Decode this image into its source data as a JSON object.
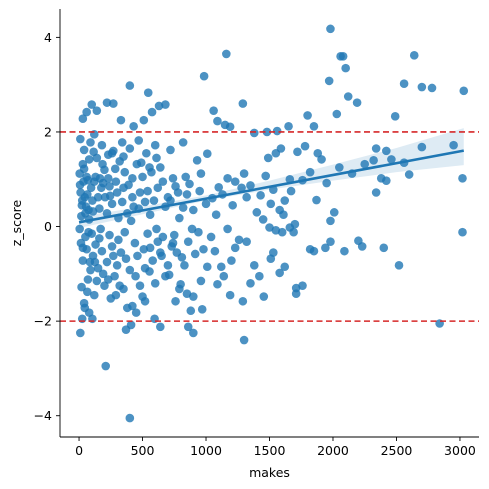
{
  "chart_data": {
    "type": "scatter",
    "xlabel": "makes",
    "ylabel": "z_score",
    "xlim": [
      -150,
      3150
    ],
    "ylim": [
      -4.45,
      4.6
    ],
    "x_ticks": [
      0,
      500,
      1000,
      1500,
      2000,
      2500,
      3000
    ],
    "y_ticks": [
      -4,
      -2,
      0,
      2,
      4
    ],
    "grid": false,
    "legend": "none",
    "point_color": "#1f77b4",
    "reference_lines": [
      {
        "y": 2,
        "color": "#d62728",
        "style": "dashed"
      },
      {
        "y": -2,
        "color": "#d62728",
        "style": "dashed"
      }
    ],
    "regression": {
      "x_range": [
        0,
        3030
      ],
      "intercept": 0.09,
      "slope": 0.0005,
      "ci_band": [
        {
          "x": 0,
          "low": -0.03,
          "high": 0.21
        },
        {
          "x": 500,
          "low": 0.26,
          "high": 0.42
        },
        {
          "x": 1000,
          "low": 0.55,
          "high": 0.66
        },
        {
          "x": 1500,
          "low": 0.78,
          "high": 0.97
        },
        {
          "x": 2000,
          "low": 0.97,
          "high": 1.31
        },
        {
          "x": 2500,
          "low": 1.15,
          "high": 1.66
        },
        {
          "x": 3030,
          "low": 1.3,
          "high": 2.08
        }
      ]
    },
    "points": [
      [
        1980,
        4.18
      ],
      [
        2060,
        3.6
      ],
      [
        2080,
        3.6
      ],
      [
        2640,
        3.62
      ],
      [
        1160,
        3.65
      ],
      [
        400,
        2.98
      ],
      [
        545,
        2.83
      ],
      [
        985,
        3.18
      ],
      [
        2100,
        3.35
      ],
      [
        1970,
        3.08
      ],
      [
        2560,
        3.02
      ],
      [
        2700,
        2.95
      ],
      [
        2780,
        2.93
      ],
      [
        3030,
        2.87
      ],
      [
        2190,
        2.62
      ],
      [
        2120,
        2.75
      ],
      [
        1060,
        2.45
      ],
      [
        1290,
        2.6
      ],
      [
        1480,
        2.0
      ],
      [
        1090,
        2.23
      ],
      [
        1150,
        2.15
      ],
      [
        1190,
        2.11
      ],
      [
        1380,
        1.98
      ],
      [
        1560,
        2.02
      ],
      [
        1650,
        2.12
      ],
      [
        1800,
        2.35
      ],
      [
        1850,
        2.12
      ],
      [
        2030,
        2.38
      ],
      [
        2490,
        2.33
      ],
      [
        2340,
        1.65
      ],
      [
        2320,
        1.4
      ],
      [
        2420,
        1.6
      ],
      [
        2560,
        1.35
      ],
      [
        2700,
        1.68
      ],
      [
        2420,
        0.97
      ],
      [
        2380,
        1.02
      ],
      [
        2340,
        0.72
      ],
      [
        2010,
        0.3
      ],
      [
        1980,
        0.12
      ],
      [
        1870,
        0.56
      ],
      [
        1720,
        1.58
      ],
      [
        1910,
        1.42
      ],
      [
        1780,
        1.7
      ],
      [
        1550,
        1.55
      ],
      [
        1490,
        1.45
      ],
      [
        1470,
        1.07
      ],
      [
        1590,
        1.65
      ],
      [
        1660,
        1.0
      ],
      [
        1670,
        0.75
      ],
      [
        1620,
        0.55
      ],
      [
        1580,
        0.35
      ],
      [
        1510,
        0.48
      ],
      [
        1430,
        0.66
      ],
      [
        1350,
        0.87
      ],
      [
        1300,
        1.12
      ],
      [
        1230,
        0.95
      ],
      [
        1170,
        1.02
      ],
      [
        1100,
        0.83
      ],
      [
        1050,
        0.6
      ],
      [
        1010,
        1.54
      ],
      [
        960,
        1.12
      ],
      [
        930,
        1.4
      ],
      [
        870,
        0.9
      ],
      [
        850,
        0.68
      ],
      [
        820,
        0.4
      ],
      [
        790,
        0.18
      ],
      [
        760,
        0.85
      ],
      [
        740,
        1.02
      ],
      [
        700,
        0.62
      ],
      [
        660,
        0.95
      ],
      [
        640,
        1.25
      ],
      [
        610,
        1.45
      ],
      [
        590,
        0.55
      ],
      [
        560,
        0.25
      ],
      [
        540,
        0.75
      ],
      [
        500,
        1.05
      ],
      [
        480,
        0.72
      ],
      [
        455,
        1.32
      ],
      [
        430,
        0.42
      ],
      [
        410,
        0.12
      ],
      [
        390,
        0.88
      ],
      [
        360,
        1.15
      ],
      [
        340,
        0.52
      ],
      [
        310,
        0.18
      ],
      [
        290,
        0.95
      ],
      [
        270,
        1.6
      ],
      [
        245,
        0.65
      ],
      [
        220,
        0.28
      ],
      [
        200,
        1.2
      ],
      [
        175,
        0.82
      ],
      [
        160,
        0.38
      ],
      [
        140,
        1.45
      ],
      [
        120,
        0.95
      ],
      [
        105,
        0.55
      ],
      [
        90,
        1.78
      ],
      [
        75,
        0.35
      ],
      [
        60,
        1.05
      ],
      [
        45,
        0.62
      ],
      [
        30,
        1.32
      ],
      [
        18,
        0.22
      ],
      [
        8,
        0.88
      ],
      [
        5,
        1.12
      ],
      [
        12,
        0.72
      ],
      [
        22,
        0.45
      ],
      [
        35,
        0.95
      ],
      [
        50,
        0.28
      ],
      [
        65,
        0.68
      ],
      [
        80,
        0.15
      ],
      [
        95,
        0.82
      ],
      [
        110,
        0.32
      ],
      [
        130,
        1.05
      ],
      [
        150,
        0.62
      ],
      [
        190,
        0.92
      ],
      [
        230,
        1.02
      ],
      [
        260,
        0.48
      ],
      [
        300,
        0.72
      ],
      [
        320,
        1.38
      ],
      [
        350,
        0.82
      ],
      [
        380,
        0.28
      ],
      [
        420,
        0.62
      ],
      [
        470,
        0.38
      ],
      [
        520,
        0.52
      ],
      [
        570,
        1.15
      ],
      [
        620,
        0.82
      ],
      [
        680,
        0.42
      ],
      [
        720,
        0.55
      ],
      [
        780,
        0.72
      ],
      [
        840,
        1.05
      ],
      [
        900,
        0.35
      ],
      [
        950,
        0.75
      ],
      [
        1000,
        0.48
      ],
      [
        1080,
        0.25
      ],
      [
        1130,
        0.68
      ],
      [
        1210,
        0.45
      ],
      [
        1280,
        0.82
      ],
      [
        1320,
        0.62
      ],
      [
        1400,
        0.3
      ],
      [
        1450,
        0.15
      ],
      [
        1530,
        0.78
      ],
      [
        1610,
        0.25
      ],
      [
        1700,
        0.05
      ],
      [
        1760,
        0.98
      ],
      [
        1820,
        1.15
      ],
      [
        1880,
        1.55
      ],
      [
        1950,
        0.92
      ],
      [
        2050,
        1.25
      ],
      [
        2150,
        1.12
      ],
      [
        2250,
        1.32
      ],
      [
        2460,
        1.42
      ],
      [
        2600,
        1.1
      ],
      [
        2200,
        -0.3
      ],
      [
        2230,
        -0.42
      ],
      [
        2400,
        -0.45
      ],
      [
        2520,
        -0.82
      ],
      [
        3020,
        -0.12
      ],
      [
        2840,
        -2.05
      ],
      [
        1940,
        -0.45
      ],
      [
        1850,
        -0.52
      ],
      [
        1820,
        -0.48
      ],
      [
        1710,
        -1.3
      ],
      [
        1710,
        -1.42
      ],
      [
        1660,
        -0.02
      ],
      [
        1600,
        -0.12
      ],
      [
        1550,
        -0.08
      ],
      [
        1500,
        -0.02
      ],
      [
        1510,
        -0.68
      ],
      [
        1420,
        -1.05
      ],
      [
        1380,
        -0.82
      ],
      [
        1350,
        -1.2
      ],
      [
        1290,
        -1.58
      ],
      [
        1260,
        -0.28
      ],
      [
        1230,
        -0.45
      ],
      [
        1200,
        -0.72
      ],
      [
        1170,
        -0.05
      ],
      [
        1140,
        -1.05
      ],
      [
        1120,
        -0.85
      ],
      [
        1090,
        -1.22
      ],
      [
        1070,
        -0.52
      ],
      [
        1040,
        -0.22
      ],
      [
        1010,
        -0.85
      ],
      [
        980,
        -0.48
      ],
      [
        960,
        -1.15
      ],
      [
        940,
        -0.12
      ],
      [
        900,
        -2.25
      ],
      [
        880,
        -1.78
      ],
      [
        860,
        -2.12
      ],
      [
        850,
        -1.42
      ],
      [
        830,
        -0.82
      ],
      [
        800,
        -1.22
      ],
      [
        790,
        -1.32
      ],
      [
        770,
        -0.55
      ],
      [
        750,
        -0.18
      ],
      [
        730,
        -0.42
      ],
      [
        700,
        -0.82
      ],
      [
        680,
        -1.05
      ],
      [
        660,
        -0.22
      ],
      [
        640,
        -0.55
      ],
      [
        620,
        -0.32
      ],
      [
        600,
        -1.2
      ],
      [
        580,
        -0.72
      ],
      [
        560,
        -0.45
      ],
      [
        540,
        -0.15
      ],
      [
        520,
        -0.88
      ],
      [
        500,
        -1.48
      ],
      [
        480,
        -1.25
      ],
      [
        460,
        -0.62
      ],
      [
        440,
        -0.35
      ],
      [
        420,
        -1.68
      ],
      [
        400,
        -0.92
      ],
      [
        380,
        -1.72
      ],
      [
        360,
        -0.12
      ],
      [
        350,
        -1.32
      ],
      [
        330,
        -0.55
      ],
      [
        310,
        -0.28
      ],
      [
        300,
        -0.82
      ],
      [
        280,
        -1.05
      ],
      [
        260,
        -0.42
      ],
      [
        240,
        -0.18
      ],
      [
        220,
        -0.75
      ],
      [
        200,
        -1.25
      ],
      [
        180,
        -0.52
      ],
      [
        160,
        -0.25
      ],
      [
        150,
        -0.88
      ],
      [
        130,
        -0.38
      ],
      [
        120,
        -1.45
      ],
      [
        110,
        -0.62
      ],
      [
        100,
        -0.15
      ],
      [
        90,
        -0.92
      ],
      [
        80,
        -1.82
      ],
      [
        70,
        -1.12
      ],
      [
        60,
        -0.48
      ],
      [
        50,
        -0.22
      ],
      [
        40,
        -1.62
      ],
      [
        30,
        -0.72
      ],
      [
        20,
        -1.28
      ],
      [
        15,
        -0.35
      ],
      [
        10,
        -2.25
      ],
      [
        5,
        -0.05
      ],
      [
        25,
        -1.95
      ],
      [
        45,
        -1.72
      ],
      [
        65,
        -1.38
      ],
      [
        85,
        -0.75
      ],
      [
        105,
        -1.95
      ],
      [
        140,
        -1.15
      ],
      [
        170,
        -0.05
      ],
      [
        210,
        -2.95
      ],
      [
        250,
        -1.52
      ],
      [
        290,
        -1.45
      ],
      [
        370,
        -2.18
      ],
      [
        400,
        -4.05
      ],
      [
        410,
        -2.08
      ],
      [
        450,
        -1.82
      ],
      [
        520,
        -1.58
      ],
      [
        595,
        -1.95
      ],
      [
        640,
        -2.12
      ],
      [
        760,
        -1.58
      ],
      [
        900,
        -1.48
      ],
      [
        970,
        -1.75
      ],
      [
        1300,
        -2.4
      ],
      [
        1190,
        -1.45
      ],
      [
        100,
        2.58
      ],
      [
        60,
        2.42
      ],
      [
        30,
        2.28
      ],
      [
        140,
        2.45
      ],
      [
        220,
        2.62
      ],
      [
        270,
        2.6
      ],
      [
        330,
        2.25
      ],
      [
        430,
        2.12
      ],
      [
        510,
        2.25
      ],
      [
        575,
        2.42
      ],
      [
        630,
        2.55
      ],
      [
        680,
        2.58
      ],
      [
        10,
        1.85
      ],
      [
        40,
        1.62
      ],
      [
        120,
        1.95
      ],
      [
        180,
        1.72
      ],
      [
        260,
        1.55
      ],
      [
        340,
        1.78
      ],
      [
        400,
        1.65
      ],
      [
        470,
        1.82
      ],
      [
        530,
        1.55
      ],
      [
        600,
        1.72
      ],
      [
        720,
        1.62
      ],
      [
        820,
        1.78
      ],
      [
        40,
        1.22
      ],
      [
        80,
        1.42
      ],
      [
        115,
        1.58
      ],
      [
        185,
        1.32
      ],
      [
        230,
        1.52
      ],
      [
        285,
        1.22
      ],
      [
        350,
        1.48
      ],
      [
        420,
        1.02
      ],
      [
        490,
        1.35
      ],
      [
        555,
        1.25
      ],
      [
        165,
        1.02
      ],
      [
        205,
        0.62
      ],
      [
        240,
        0.85
      ],
      [
        70,
        0.98
      ],
      [
        25,
        0.55
      ],
      [
        55,
        0.42
      ],
      [
        75,
        -0.12
      ],
      [
        30,
        -0.45
      ],
      [
        125,
        -0.75
      ],
      [
        190,
        -1.0
      ],
      [
        230,
        -1.12
      ],
      [
        270,
        -0.62
      ],
      [
        320,
        -1.25
      ],
      [
        370,
        -0.68
      ],
      [
        445,
        -1.05
      ],
      [
        510,
        -0.48
      ],
      [
        555,
        -0.95
      ],
      [
        610,
        -0.05
      ],
      [
        650,
        -0.62
      ],
      [
        710,
        -1.02
      ],
      [
        740,
        -0.35
      ],
      [
        810,
        -0.65
      ],
      [
        860,
        -0.32
      ],
      [
        890,
        -0.05
      ],
      [
        915,
        -0.58
      ],
      [
        1320,
        -0.32
      ],
      [
        1455,
        -1.48
      ],
      [
        1530,
        -0.55
      ],
      [
        1580,
        -0.98
      ],
      [
        1620,
        -0.85
      ],
      [
        1690,
        -0.12
      ],
      [
        1760,
        -1.25
      ],
      [
        1980,
        -0.32
      ],
      [
        2090,
        -0.52
      ],
      [
        3020,
        1.02
      ],
      [
        2950,
        1.72
      ]
    ]
  }
}
